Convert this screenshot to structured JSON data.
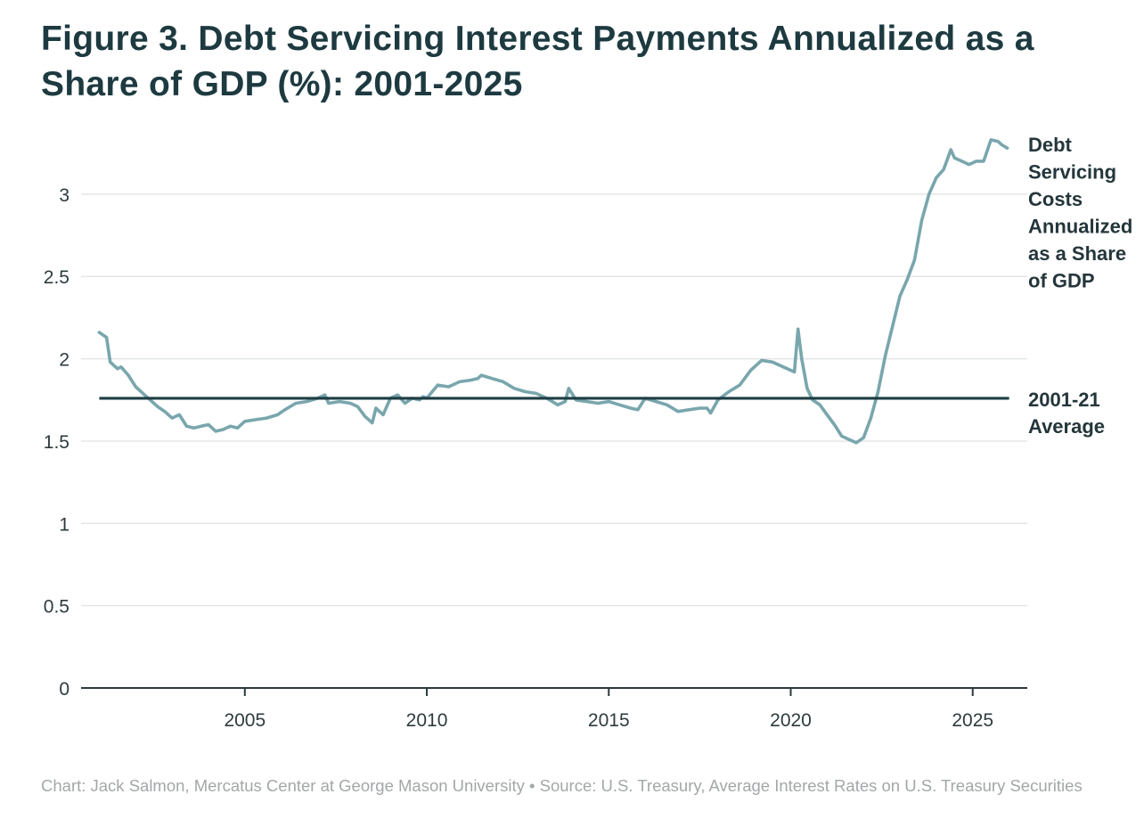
{
  "title": "Figure 3. Debt Servicing Interest Payments Annualized as a Share of GDP (%): 2001-2025",
  "footer": "Chart: Jack Salmon, Mercatus Center at George Mason University • Source: U.S. Treasury, Average Interest Rates on U.S. Treasury Securities",
  "colors": {
    "series": "#79a6ad",
    "average": "#1e3d44",
    "grid": "#e3e6e7",
    "axis": "#2b3a3d",
    "text": "#1d3a40"
  },
  "chart_data": {
    "type": "line",
    "title": "Figure 3. Debt Servicing Interest Payments Annualized as a Share of GDP (%): 2001-2025",
    "xlabel": "",
    "ylabel": "",
    "xlim": [
      2000.5,
      2026.5
    ],
    "ylim": [
      0,
      3.4
    ],
    "y_ticks": [
      0,
      0.5,
      1,
      1.5,
      2,
      2.5,
      3
    ],
    "y_tick_labels": [
      "0",
      "0.5",
      "1",
      "1.5",
      "2",
      "2.5",
      "3"
    ],
    "x_ticks": [
      2005,
      2010,
      2015,
      2020,
      2025
    ],
    "x_tick_labels": [
      "2005",
      "2010",
      "2015",
      "2020",
      "2025"
    ],
    "grid": true,
    "series": [
      {
        "name": "Debt Servicing Costs Annualized as a Share of GDP",
        "label_lines": [
          "Debt",
          "Servicing",
          "Costs",
          "Annualized",
          "as a Share",
          "of GDP"
        ],
        "x": [
          2001.0,
          2001.2,
          2001.3,
          2001.5,
          2001.6,
          2001.8,
          2002.0,
          2002.2,
          2002.4,
          2002.6,
          2002.8,
          2003.0,
          2003.2,
          2003.4,
          2003.6,
          2003.8,
          2004.0,
          2004.2,
          2004.4,
          2004.6,
          2004.8,
          2005.0,
          2005.3,
          2005.6,
          2005.9,
          2006.1,
          2006.4,
          2006.7,
          2007.0,
          2007.2,
          2007.3,
          2007.6,
          2007.9,
          2008.1,
          2008.3,
          2008.5,
          2008.6,
          2008.8,
          2009.0,
          2009.2,
          2009.4,
          2009.6,
          2009.8,
          2009.9,
          2010.0,
          2010.3,
          2010.6,
          2010.9,
          2011.2,
          2011.4,
          2011.5,
          2011.8,
          2012.1,
          2012.4,
          2012.7,
          2013.0,
          2013.3,
          2013.6,
          2013.8,
          2013.9,
          2014.1,
          2014.4,
          2014.7,
          2015.0,
          2015.3,
          2015.6,
          2015.8,
          2016.0,
          2016.3,
          2016.6,
          2016.9,
          2017.2,
          2017.5,
          2017.7,
          2017.8,
          2018.0,
          2018.3,
          2018.6,
          2018.9,
          2019.2,
          2019.5,
          2019.8,
          2020.0,
          2020.1,
          2020.2,
          2020.3,
          2020.45,
          2020.6,
          2020.8,
          2021.0,
          2021.2,
          2021.4,
          2021.6,
          2021.8,
          2022.0,
          2022.2,
          2022.4,
          2022.6,
          2022.8,
          2023.0,
          2023.2,
          2023.4,
          2023.6,
          2023.8,
          2024.0,
          2024.2,
          2024.4,
          2024.5,
          2024.7,
          2024.9,
          2025.1,
          2025.3,
          2025.5,
          2025.7,
          2025.8,
          2025.95
        ],
        "y": [
          2.16,
          2.13,
          1.98,
          1.94,
          1.95,
          1.9,
          1.83,
          1.79,
          1.75,
          1.71,
          1.68,
          1.64,
          1.66,
          1.59,
          1.58,
          1.59,
          1.6,
          1.56,
          1.57,
          1.59,
          1.58,
          1.62,
          1.63,
          1.64,
          1.66,
          1.69,
          1.73,
          1.74,
          1.76,
          1.78,
          1.73,
          1.74,
          1.73,
          1.71,
          1.65,
          1.61,
          1.7,
          1.66,
          1.76,
          1.78,
          1.73,
          1.76,
          1.75,
          1.77,
          1.76,
          1.84,
          1.83,
          1.86,
          1.87,
          1.88,
          1.9,
          1.88,
          1.86,
          1.82,
          1.8,
          1.79,
          1.76,
          1.72,
          1.74,
          1.82,
          1.75,
          1.74,
          1.73,
          1.74,
          1.72,
          1.7,
          1.69,
          1.76,
          1.74,
          1.72,
          1.68,
          1.69,
          1.7,
          1.7,
          1.67,
          1.75,
          1.8,
          1.84,
          1.93,
          1.99,
          1.98,
          1.95,
          1.93,
          1.92,
          2.18,
          2.0,
          1.82,
          1.75,
          1.72,
          1.66,
          1.6,
          1.53,
          1.51,
          1.49,
          1.52,
          1.64,
          1.8,
          2.02,
          2.2,
          2.38,
          2.48,
          2.6,
          2.84,
          3.0,
          3.1,
          3.15,
          3.27,
          3.22,
          3.2,
          3.18,
          3.2,
          3.2,
          3.33,
          3.32,
          3.3,
          3.28
        ]
      },
      {
        "name": "2001-21 Average",
        "label_lines": [
          "2001-21",
          "Average"
        ],
        "x": [
          2001.0,
          2026.0
        ],
        "y": [
          1.76,
          1.76
        ]
      }
    ]
  }
}
